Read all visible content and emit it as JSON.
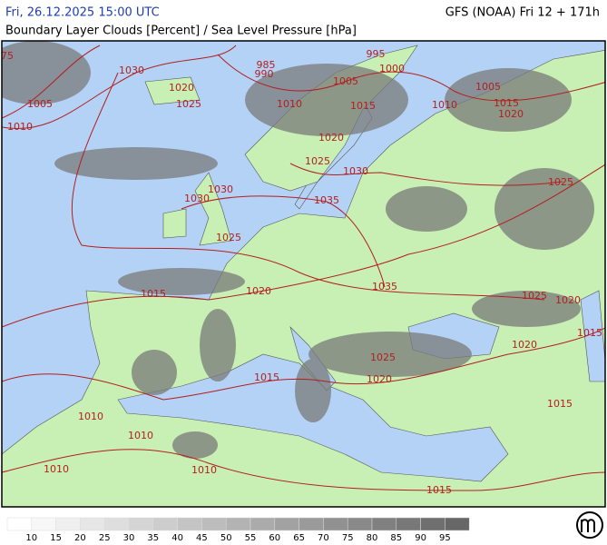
{
  "header": {
    "datetime": "Fri, 26.12.2025 15:00 UTC",
    "model": "GFS (NOAA) Fri 12 + 171h",
    "title": "Boundary Layer Clouds [Percent] / Sea Level Pressure [hPa]"
  },
  "map": {
    "isobar_labels": [
      "75",
      "1030",
      "985",
      "995",
      "1000",
      "990",
      "1020",
      "1005",
      "1005",
      "1005",
      "1025",
      "1010",
      "1015",
      "1010",
      "1015",
      "1020",
      "1010",
      "1020",
      "1025",
      "1030",
      "1025",
      "1030",
      "1030",
      "1035",
      "1025",
      "1035",
      "1015",
      "1020",
      "1025",
      "1020",
      "1015",
      "1020",
      "1025",
      "1015",
      "1020",
      "1015",
      "1010",
      "1010",
      "1010",
      "1010",
      "1015"
    ]
  },
  "legend": {
    "values": [
      10,
      15,
      20,
      25,
      30,
      35,
      40,
      45,
      50,
      55,
      60,
      65,
      70,
      75,
      80,
      85,
      90,
      95
    ],
    "colors": [
      "#ffffff",
      "#f7f7f7",
      "#efefef",
      "#e6e6e6",
      "#dedede",
      "#d5d5d5",
      "#cdcdcd",
      "#c4c4c4",
      "#bcbcbc",
      "#b3b3b3",
      "#ababab",
      "#a2a2a2",
      "#9a9a9a",
      "#919191",
      "#898989",
      "#808080",
      "#787878",
      "#6f6f6f",
      "#676767"
    ]
  }
}
